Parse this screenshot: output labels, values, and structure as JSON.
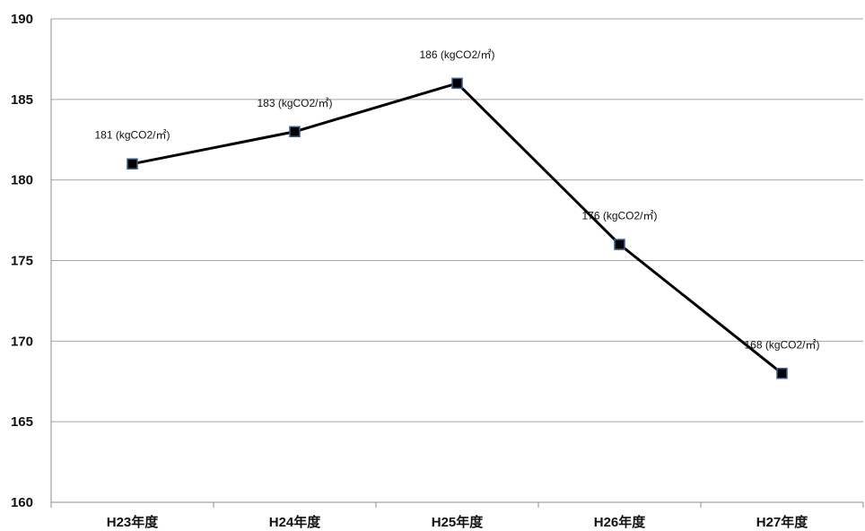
{
  "chart_data": {
    "type": "line",
    "title": "",
    "xlabel": "",
    "ylabel": "",
    "categories": [
      "H23年度",
      "H24年度",
      "H25年度",
      "H26年度",
      "H27年度"
    ],
    "series": [
      {
        "values": [
          181,
          183,
          186,
          176,
          168
        ],
        "data_labels": [
          "181 (kgCO2/㎡)",
          "183 (kgCO2/㎡)",
          "186 (kgCO2/㎡)",
          "176 (kgCO2/㎡)",
          "168 (kgCO2/㎡)"
        ]
      }
    ],
    "ylim": [
      160,
      190
    ],
    "yticks": [
      "160",
      "165",
      "170",
      "175",
      "180",
      "185",
      "190"
    ],
    "grid": true,
    "legend": "none",
    "colors": {
      "line": "#000000",
      "marker_fill": "#000000",
      "marker_border": "#3b5f8f",
      "grid": "#a6a6a6"
    }
  }
}
